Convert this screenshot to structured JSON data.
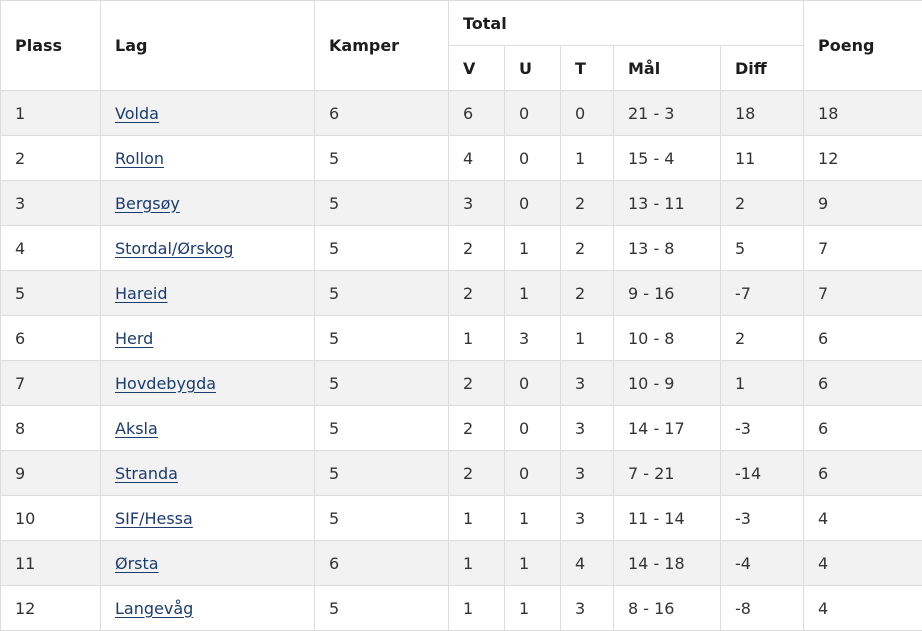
{
  "headers": {
    "plass": "Plass",
    "lag": "Lag",
    "kamper": "Kamper",
    "total": "Total",
    "v": "V",
    "u": "U",
    "t": "T",
    "maal": "Mål",
    "diff": "Diff",
    "poeng": "Poeng"
  },
  "rows": [
    {
      "plass": "1",
      "lag": "Volda",
      "kamper": "6",
      "v": "6",
      "u": "0",
      "t": "0",
      "maal": "21 - 3",
      "diff": "18",
      "poeng": "18"
    },
    {
      "plass": "2",
      "lag": "Rollon",
      "kamper": "5",
      "v": "4",
      "u": "0",
      "t": "1",
      "maal": "15 - 4",
      "diff": "11",
      "poeng": "12"
    },
    {
      "plass": "3",
      "lag": "Bergsøy",
      "kamper": "5",
      "v": "3",
      "u": "0",
      "t": "2",
      "maal": "13 - 11",
      "diff": "2",
      "poeng": "9"
    },
    {
      "plass": "4",
      "lag": "Stordal/Ørskog",
      "kamper": "5",
      "v": "2",
      "u": "1",
      "t": "2",
      "maal": "13 - 8",
      "diff": "5",
      "poeng": "7"
    },
    {
      "plass": "5",
      "lag": "Hareid",
      "kamper": "5",
      "v": "2",
      "u": "1",
      "t": "2",
      "maal": "9 - 16",
      "diff": "-7",
      "poeng": "7"
    },
    {
      "plass": "6",
      "lag": "Herd",
      "kamper": "5",
      "v": "1",
      "u": "3",
      "t": "1",
      "maal": "10 - 8",
      "diff": "2",
      "poeng": "6"
    },
    {
      "plass": "7",
      "lag": "Hovdebygda",
      "kamper": "5",
      "v": "2",
      "u": "0",
      "t": "3",
      "maal": "10 - 9",
      "diff": "1",
      "poeng": "6"
    },
    {
      "plass": "8",
      "lag": "Aksla",
      "kamper": "5",
      "v": "2",
      "u": "0",
      "t": "3",
      "maal": "14 - 17",
      "diff": "-3",
      "poeng": "6"
    },
    {
      "plass": "9",
      "lag": "Stranda",
      "kamper": "5",
      "v": "2",
      "u": "0",
      "t": "3",
      "maal": "7 - 21",
      "diff": "-14",
      "poeng": "6"
    },
    {
      "plass": "10",
      "lag": "SIF/Hessa",
      "kamper": "5",
      "v": "1",
      "u": "1",
      "t": "3",
      "maal": "11 - 14",
      "diff": "-3",
      "poeng": "4"
    },
    {
      "plass": "11",
      "lag": "Ørsta",
      "kamper": "6",
      "v": "1",
      "u": "1",
      "t": "4",
      "maal": "14 - 18",
      "diff": "-4",
      "poeng": "4"
    },
    {
      "plass": "12",
      "lag": "Langevåg",
      "kamper": "5",
      "v": "1",
      "u": "1",
      "t": "3",
      "maal": "8 - 16",
      "diff": "-8",
      "poeng": "4"
    }
  ],
  "colors": {
    "link": "#1a3c6e",
    "stripe": "#f2f2f2",
    "border": "#dcdcdc",
    "leader_separator": "#555555"
  }
}
